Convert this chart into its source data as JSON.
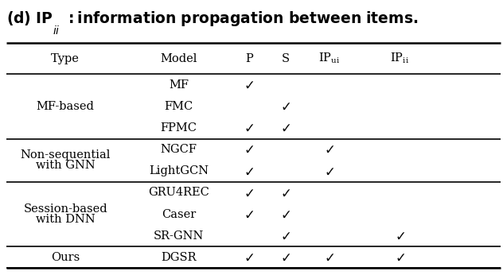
{
  "groups": [
    {
      "type_label": [
        "MF-based"
      ],
      "type_rows": 3,
      "models": [
        "MF",
        "FMC",
        "FPMC"
      ],
      "checks": [
        [
          true,
          false,
          false,
          false
        ],
        [
          false,
          true,
          false,
          false
        ],
        [
          true,
          true,
          false,
          false
        ]
      ]
    },
    {
      "type_label": [
        "Non-sequential",
        "with GNN"
      ],
      "type_rows": 2,
      "models": [
        "NGCF",
        "LightGCN"
      ],
      "checks": [
        [
          true,
          false,
          true,
          false
        ],
        [
          true,
          false,
          true,
          false
        ]
      ]
    },
    {
      "type_label": [
        "Session-based",
        "with DNN"
      ],
      "type_rows": 3,
      "models": [
        "GRU4REC",
        "Caser",
        "SR-GNN"
      ],
      "checks": [
        [
          true,
          true,
          false,
          false
        ],
        [
          true,
          true,
          false,
          false
        ],
        [
          false,
          true,
          false,
          true
        ]
      ]
    },
    {
      "type_label": [
        "Ours"
      ],
      "type_rows": 1,
      "models": [
        "DGSR"
      ],
      "checks": [
        [
          true,
          true,
          true,
          true
        ]
      ]
    }
  ],
  "background_color": "#ffffff",
  "text_color": "#000000",
  "line_color": "#000000",
  "font_size": 10.5,
  "title_font_size": 13.5
}
